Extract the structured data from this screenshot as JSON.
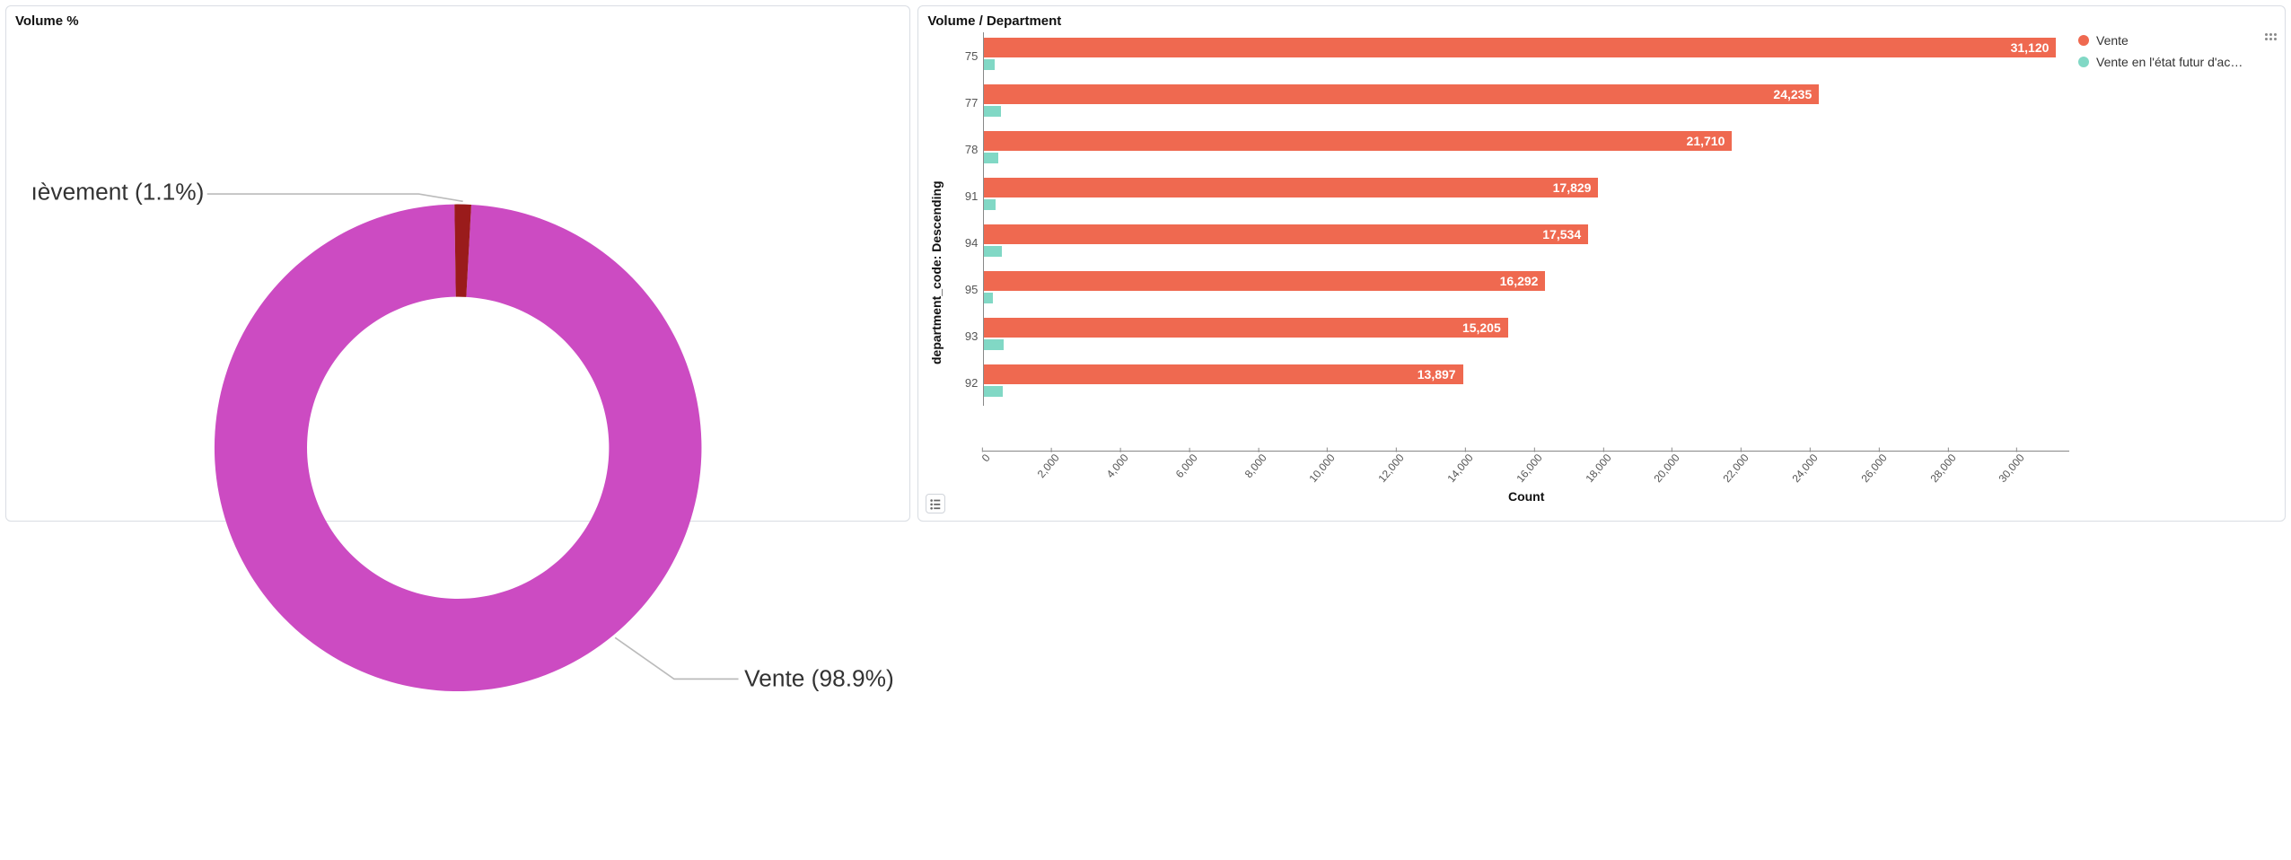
{
  "donut_panel": {
    "title": "Volume %",
    "type": "donut",
    "background_color": "#ffffff",
    "ring_inner_radius_ratio": 0.62,
    "slices": [
      {
        "label": "Vente",
        "pct": 98.9,
        "color": "#cc4bc2",
        "callout": "Vente (98.9%)"
      },
      {
        "label": "…èvement",
        "pct": 1.1,
        "color": "#9a1b1b",
        "callout": "ıèvement (1.1%)"
      }
    ],
    "callout_line_color": "#bbbbbb",
    "label_fontsize": 16
  },
  "bar_panel": {
    "title": "Volume / Department",
    "type": "grouped_horizontal_bar",
    "x_axis_label": "Count",
    "y_axis_label": "department_code: Descending",
    "x_max": 31500,
    "x_tick_step": 2000,
    "x_ticks": [
      "0",
      "2,000",
      "4,000",
      "6,000",
      "8,000",
      "10,000",
      "12,000",
      "14,000",
      "16,000",
      "18,000",
      "20,000",
      "22,000",
      "24,000",
      "26,000",
      "28,000",
      "30,000"
    ],
    "categories": [
      "75",
      "77",
      "78",
      "91",
      "94",
      "95",
      "93",
      "92"
    ],
    "series": [
      {
        "name": "Vente",
        "color": "#ef6950",
        "values": [
          31120,
          24235,
          21710,
          17829,
          17534,
          16292,
          15205,
          13897
        ]
      },
      {
        "name": "Vente en l'état futur d'ac…",
        "color": "#81d8c5",
        "values": [
          300,
          480,
          420,
          320,
          500,
          250,
          560,
          550
        ]
      }
    ],
    "value_labels": [
      "31,120",
      "24,235",
      "21,710",
      "17,829",
      "17,534",
      "16,292",
      "15,205",
      "13,897"
    ],
    "value_label_color": "#ffffff",
    "value_label_fontsize": 14,
    "value_label_fontweight": 700,
    "axis_line_color": "#888888",
    "tick_label_color": "#555555",
    "tick_fontsize": 12,
    "legend_fontsize": 14,
    "background_color": "#ffffff"
  },
  "panel_border_color": "#d9dde3"
}
